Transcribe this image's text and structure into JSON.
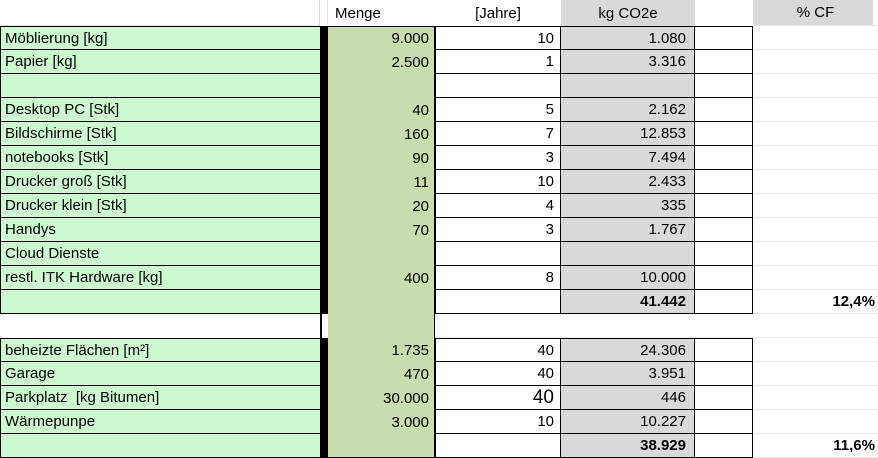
{
  "header": {
    "menge": "Menge",
    "jahre": "[Jahre]",
    "kg_co2e": "kg CO2e",
    "pct_cf": "% CF"
  },
  "colors": {
    "label_green": "#ccf9d0",
    "menge_green": "#c8dcae",
    "header_gray": "#d9d9d9",
    "border_black": "#000000"
  },
  "rows": [
    {
      "label": "Möblierung [kg]",
      "menge": "9.000",
      "jahre": "10",
      "kg": "1.080",
      "pcf": ""
    },
    {
      "label": "Papier [kg]",
      "menge": "2.500",
      "jahre": "1",
      "kg": "3.316",
      "pcf": ""
    },
    {
      "label": "",
      "menge": "",
      "jahre": "",
      "kg": "",
      "pcf": ""
    },
    {
      "label": "Desktop PC [Stk]",
      "menge": "40",
      "jahre": "5",
      "kg": "2.162",
      "pcf": ""
    },
    {
      "label": "Bildschirme [Stk]",
      "menge": "160",
      "jahre": "7",
      "kg": "12.853",
      "pcf": ""
    },
    {
      "label": "notebooks [Stk]",
      "menge": "90",
      "jahre": "3",
      "kg": "7.494",
      "pcf": ""
    },
    {
      "label": "Drucker groß [Stk]",
      "menge": "11",
      "jahre": "10",
      "kg": "2.433",
      "pcf": ""
    },
    {
      "label": "Drucker klein [Stk]",
      "menge": "20",
      "jahre": "4",
      "kg": "335",
      "pcf": ""
    },
    {
      "label": "Handys",
      "menge": "70",
      "jahre": "3",
      "kg": "1.767",
      "pcf": ""
    },
    {
      "label": "Cloud Dienste",
      "menge": "",
      "jahre": "",
      "kg": "",
      "pcf": ""
    },
    {
      "label": "restl. ITK Hardware [kg]",
      "menge": "400",
      "jahre": "8",
      "kg": "10.000",
      "pcf": ""
    },
    {
      "label": "",
      "menge": "",
      "jahre": "",
      "kg": "41.442",
      "pcf": "12,4%"
    },
    {
      "label": "",
      "menge": "",
      "jahre": "",
      "kg": "",
      "pcf": ""
    },
    {
      "label": "beheizte Flächen [m²]",
      "menge": "1.735",
      "jahre": "40",
      "kg": "24.306",
      "pcf": ""
    },
    {
      "label": "Garage",
      "menge": "470",
      "jahre": "40",
      "kg": "3.951",
      "pcf": ""
    },
    {
      "label": "Parkplatz  [kg Bitumen]",
      "menge": "30.000",
      "jahre": "40",
      "kg": "446",
      "pcf": ""
    },
    {
      "label": "Wärmepunpe",
      "menge": "3.000",
      "jahre": "10",
      "kg": "10.227",
      "pcf": ""
    },
    {
      "label": "",
      "menge": "",
      "jahre": "",
      "kg": "38.929",
      "pcf": "11,6%"
    }
  ]
}
